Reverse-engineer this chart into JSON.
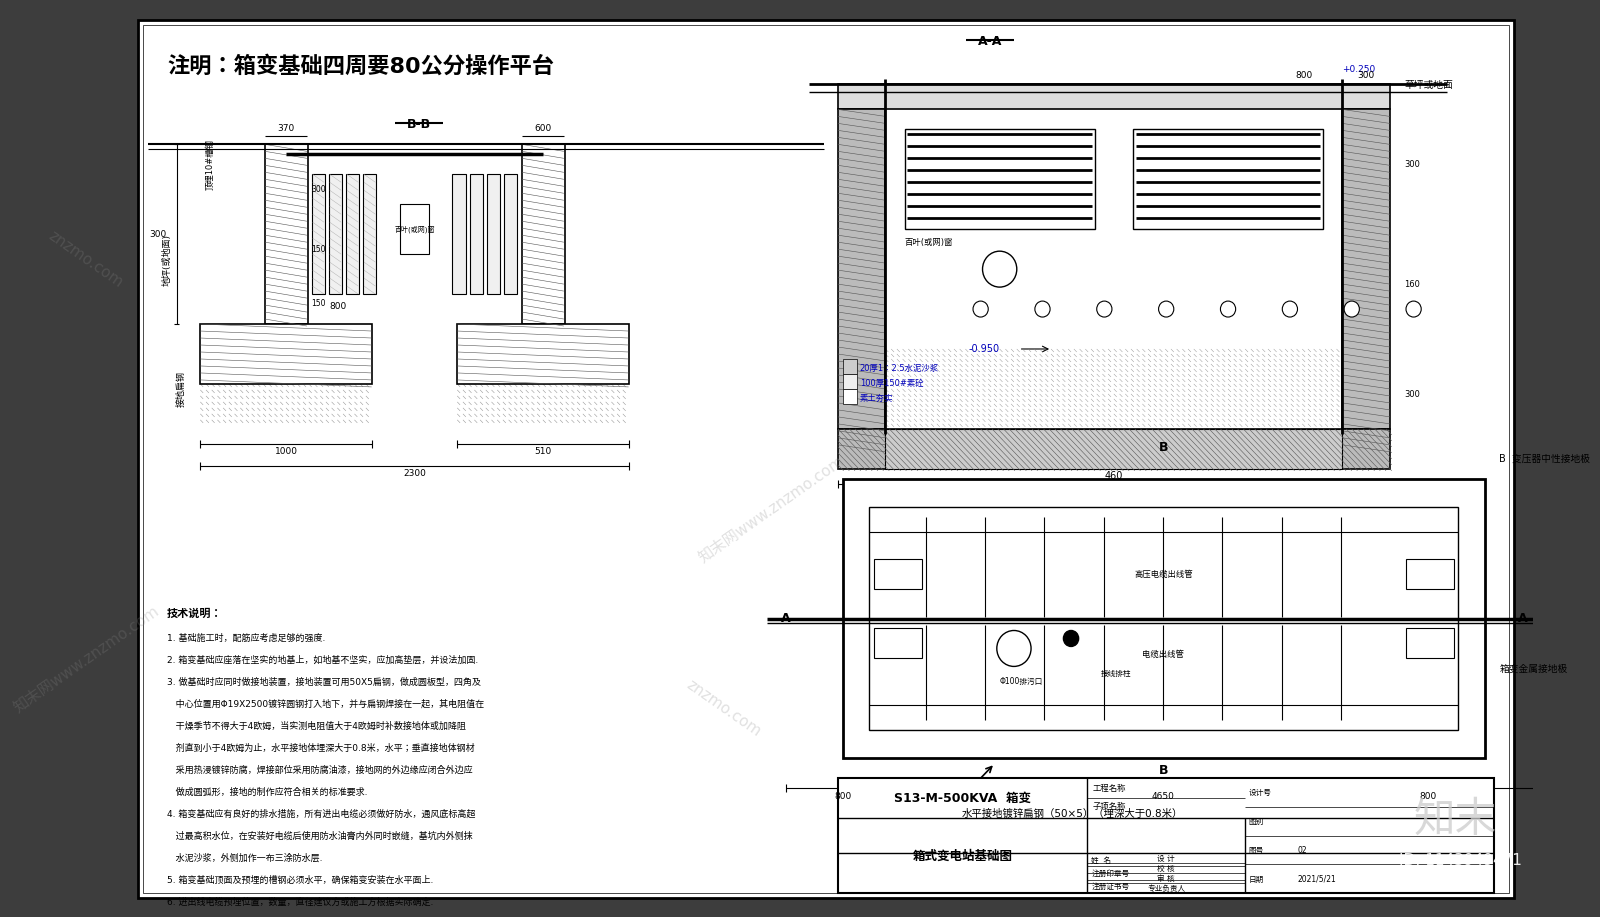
{
  "bg_color": "#3d3d3d",
  "paper_color": "#ffffff",
  "title_text": "注明：箱变基础四周要80公分操作平台",
  "aa_label": "A-A",
  "bb_label": "B-B",
  "note_title": "技术说明：",
  "notes": [
    "1. 基础施工时，配筋应考虑足够的强度.",
    "2. 箱变基础应座落在坚实的地基上，如地基不坚实，应加高垫层，并设法加固.",
    "3. 做基础时应同时做接地装置，接地装置可用50X5扁钢，做成圆板型，四角及",
    "   中心位置用Φ19X2500镀锌圆钢打入地下，并与扁钢焊接在一起，其电阻值在",
    "   干燥季节不得大于4欧姆，当实测电阻值大于4欧姆时补数接地体或加降阻",
    "   剂直到小于4欧姆为止，水平接地体埋深大于0.8米，水平；垂直接地体钢材",
    "   采用热浸镀锌防腐，焊接部位采用防腐油漆，接地网的外边缘应闭合外边应",
    "   做成圆弧形，接地的制作应符合相关的标准要求.",
    "4. 箱变基础应有良好的排水措施，所有进出电缆必须做好防水，通风底标高超",
    "   过最高积水位，在安装好电缆后使用防水油膏内外同时嵌缝，基坑内外侧抹",
    "   水泥沙浆，外侧加作一布三涂防水层.",
    "5. 箱变基础顶面及预埋的槽钢必须水平，确保箱变安装在水平面上.",
    "6. 进出线电缆预埋位置，数量，直径建议方或施工方根据实际确定."
  ],
  "table_title1": "S13-M-500KVA  箱变",
  "table_title2": "箱式变电站基础图",
  "table_labels": [
    "姓  名",
    "注册印章号",
    "注册证书号"
  ],
  "table_roles": [
    "设 计",
    "校 核",
    "审 核",
    "专业负责人"
  ],
  "table_fields": [
    "工程名称",
    "子项名称",
    "设计号",
    "图别",
    "图号",
    "日期"
  ],
  "table_values": [
    "",
    "",
    "",
    "",
    "02",
    "2021/5/21"
  ],
  "anno_color": "#0000bb",
  "line_color": "#000000",
  "hatch_color": "#555555",
  "dim_color": "#000000",
  "text_color": "#000000",
  "bg_gray": "#aaaaaa"
}
